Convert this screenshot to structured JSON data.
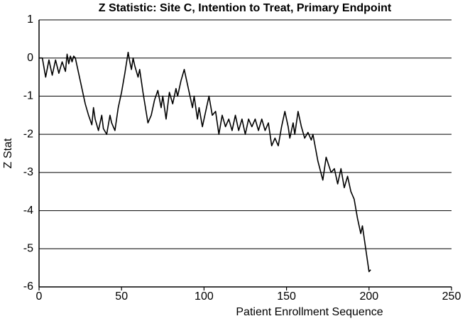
{
  "chart_data": {
    "type": "line",
    "title": "Z Statistic: Site C, Intention to Treat, Primary Endpoint",
    "x_label": "Patient Enrollment Sequence",
    "y_label": "Z Stat",
    "xlim": [
      0,
      250
    ],
    "xticks": [
      0,
      50,
      100,
      150,
      200,
      250
    ],
    "ylim": [
      -6,
      1
    ],
    "yticks": [
      -6,
      -5,
      -4,
      -3,
      -2,
      -1,
      0,
      1
    ],
    "grid": true,
    "x": [
      0,
      2,
      4,
      6,
      8,
      10,
      12,
      14,
      16,
      17,
      18,
      19,
      20,
      21,
      22,
      25,
      28,
      30,
      32,
      33,
      34,
      36,
      38,
      39,
      41,
      43,
      44,
      46,
      48,
      50,
      52,
      54,
      55,
      56,
      57,
      58,
      60,
      61,
      63,
      66,
      68,
      70,
      72,
      74,
      75,
      77,
      79,
      81,
      83,
      84,
      86,
      88,
      90,
      91,
      93,
      94,
      96,
      97,
      99,
      101,
      103,
      105,
      107,
      109,
      111,
      113,
      115,
      117,
      119,
      121,
      123,
      125,
      127,
      129,
      131,
      133,
      135,
      137,
      139,
      141,
      143,
      145,
      147,
      149,
      151,
      152,
      154,
      155,
      157,
      159,
      161,
      163,
      165,
      166,
      169,
      172,
      174,
      177,
      179,
      181,
      183,
      185,
      187,
      189,
      191,
      193,
      195,
      196,
      198,
      200,
      201
    ],
    "series": [
      {
        "name": "Z Stat",
        "color": "#000000",
        "values": [
          0,
          0,
          -0.5,
          -0.05,
          -0.45,
          -0.05,
          -0.4,
          -0.1,
          -0.35,
          0.1,
          -0.15,
          0.05,
          -0.1,
          0.05,
          0.0,
          -0.6,
          -1.2,
          -1.5,
          -1.75,
          -1.3,
          -1.6,
          -1.9,
          -1.5,
          -1.85,
          -2.0,
          -1.5,
          -1.7,
          -1.9,
          -1.3,
          -0.9,
          -0.4,
          0.15,
          -0.1,
          -0.3,
          0.0,
          -0.2,
          -0.5,
          -0.3,
          -0.9,
          -1.7,
          -1.5,
          -1.1,
          -0.85,
          -1.3,
          -1.0,
          -1.6,
          -0.9,
          -1.2,
          -0.8,
          -1.0,
          -0.6,
          -0.3,
          -0.7,
          -0.9,
          -1.3,
          -1.0,
          -1.6,
          -1.3,
          -1.8,
          -1.4,
          -1.0,
          -1.5,
          -1.4,
          -2.0,
          -1.5,
          -1.8,
          -1.6,
          -1.9,
          -1.5,
          -1.9,
          -1.6,
          -2.0,
          -1.6,
          -1.8,
          -1.6,
          -1.9,
          -1.6,
          -1.9,
          -1.7,
          -2.3,
          -2.1,
          -2.3,
          -1.8,
          -1.4,
          -1.8,
          -2.1,
          -1.7,
          -2.0,
          -1.4,
          -1.8,
          -2.1,
          -1.95,
          -2.15,
          -2.0,
          -2.7,
          -3.2,
          -2.6,
          -3.0,
          -2.9,
          -3.3,
          -2.9,
          -3.4,
          -3.1,
          -3.5,
          -3.7,
          -4.2,
          -4.6,
          -4.4,
          -5.0,
          -5.6,
          -5.55
        ]
      }
    ]
  }
}
